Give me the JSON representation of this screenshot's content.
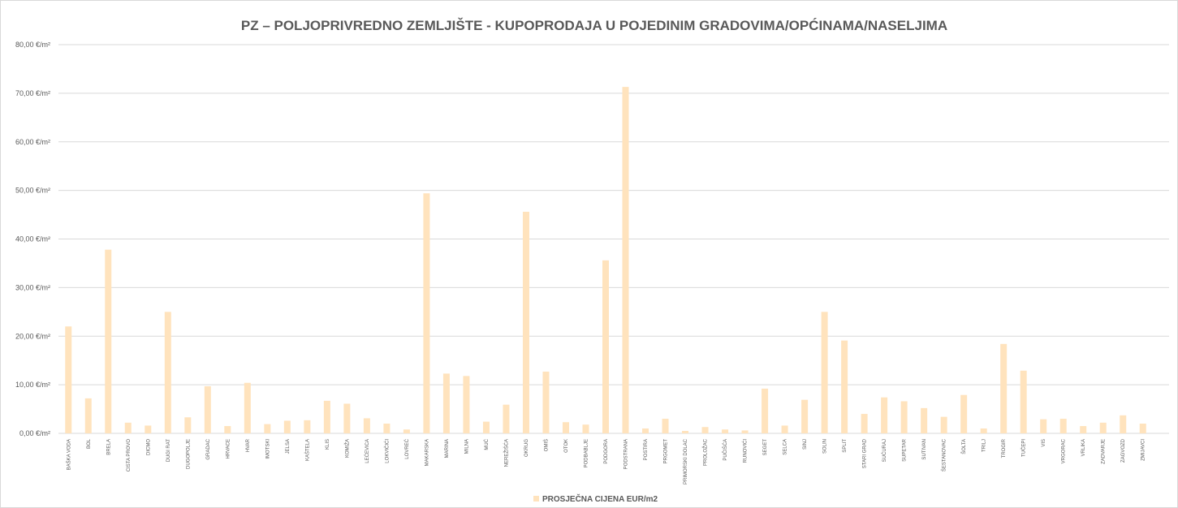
{
  "chart_data": {
    "type": "bar",
    "title": "PZ – POLJOPRIVREDNO ZEMLJIŠTE - KUPOPRODAJA  U POJEDINIM GRADOVIMA/OPĆINAMA/NASELJIMA",
    "categories": [
      "BAŠKA VODA",
      "BOL",
      "BRELA",
      "CISTA PROVO",
      "DICMO",
      "DUGI RAT",
      "DUGOPOLJE",
      "GRADAC",
      "HRVACE",
      "HVAR",
      "IMOTSKI",
      "JELSA",
      "KAŠTELA",
      "KLIS",
      "KOMIŽA",
      "LEĆEVICA",
      "LOKVIČIĆI",
      "LOVREĆ",
      "MAKARSKA",
      "MARINA",
      "MILNA",
      "MUĆ",
      "NEREŽIŠĆA",
      "OKRUG",
      "OMIŠ",
      "OTOK",
      "PODBABLJE",
      "PODGORA",
      "PODSTRANA",
      "POSTIRA",
      "PRGOMET",
      "PRIMORSKI DOLAC",
      "PROLOŽAC",
      "PUČIŠĆA",
      "RUNOVIĆI",
      "SEGET",
      "SELCA",
      "SINJ",
      "SOLIN",
      "SPLIT",
      "STARI GRAD",
      "SUĆURAJ",
      "SUPETAR",
      "SUTIVAN",
      "ŠESTANOVAC",
      "ŠOLTA",
      "TRILJ",
      "TROGIR",
      "TUČEPI",
      "VIS",
      "VRGORAC",
      "VRLIKA",
      "ZADVARJE",
      "ZAGVOZD",
      "ZMIJAVCI"
    ],
    "series": [
      {
        "name": "PROSJEČNA CIJENA EUR/m2",
        "color": "#ffe3bd",
        "values": [
          22,
          7.2,
          37.8,
          2.2,
          1.6,
          25,
          3.3,
          9.7,
          1.5,
          10.4,
          1.9,
          2.6,
          2.7,
          6.7,
          6.1,
          3.1,
          2.0,
          0.8,
          49.4,
          12.3,
          11.8,
          2.4,
          5.9,
          45.6,
          12.7,
          2.3,
          1.8,
          35.6,
          71.3,
          1.0,
          3.0,
          0.5,
          1.3,
          0.8,
          0.6,
          9.2,
          1.6,
          6.9,
          25,
          19.1,
          4.0,
          7.4,
          6.6,
          5.2,
          3.4,
          7.9,
          1.0,
          18.4,
          12.9,
          2.9,
          3.0,
          1.5,
          2.2,
          3.7,
          2.0
        ]
      }
    ],
    "ylim": [
      0,
      80
    ],
    "yticks": [
      {
        "value": 0,
        "label": "0,00 €/m²"
      },
      {
        "value": 10,
        "label": "10,00 €/m²"
      },
      {
        "value": 20,
        "label": "20,00 €/m²"
      },
      {
        "value": 30,
        "label": "30,00 €/m²"
      },
      {
        "value": 40,
        "label": "40,00 €/m²"
      },
      {
        "value": 50,
        "label": "50,00 €/m²"
      },
      {
        "value": 60,
        "label": "60,00 €/m²"
      },
      {
        "value": 70,
        "label": "70,00 €/m²"
      },
      {
        "value": 80,
        "label": "80,00 €/m²"
      }
    ],
    "grid": true,
    "legend": "bottom"
  }
}
